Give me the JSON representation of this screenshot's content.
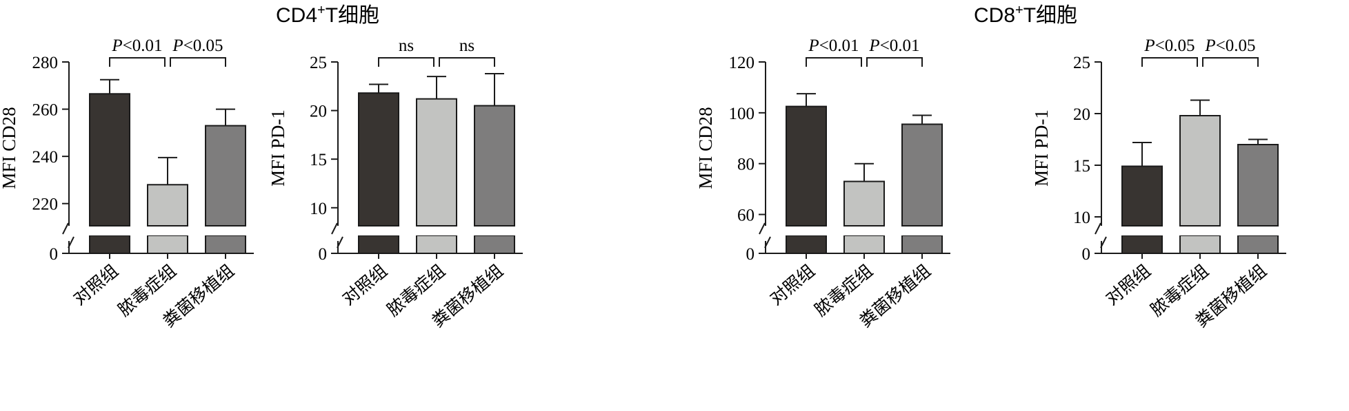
{
  "group_titles": [
    {
      "base": "CD4",
      "sup": "+",
      "rest": "T细胞"
    },
    {
      "base": "CD8",
      "sup": "+",
      "rest": "T细胞"
    }
  ],
  "chart_data": [
    {
      "type": "bar",
      "categories": [
        "对照组",
        "脓毒症组",
        "粪菌移植组"
      ],
      "ylabel": "MFI CD28",
      "ylim": [
        210,
        280
      ],
      "yticks": [
        "220",
        "240",
        "260",
        "280"
      ],
      "yzero": "0",
      "values": [
        266.5,
        228,
        253
      ],
      "errors": [
        6,
        11.5,
        7
      ],
      "colors": [
        "#383431",
        "#c2c3c1",
        "#7e7d7d"
      ],
      "comparisons": [
        {
          "from": 0,
          "to": 1,
          "italic": "P",
          "text": "<0.01"
        },
        {
          "from": 1,
          "to": 2,
          "italic": "P",
          "text": "<0.05"
        }
      ]
    },
    {
      "type": "bar",
      "categories": [
        "对照组",
        "脓毒症组",
        "粪菌移植组"
      ],
      "ylabel": "MFI PD-1",
      "ylim": [
        8,
        25
      ],
      "yticks": [
        "10",
        "15",
        "20",
        "25"
      ],
      "yzero": "0",
      "values": [
        21.8,
        21.2,
        20.5
      ],
      "errors": [
        0.9,
        2.3,
        3.3
      ],
      "colors": [
        "#383431",
        "#c2c3c1",
        "#7e7d7d"
      ],
      "comparisons": [
        {
          "from": 0,
          "to": 1,
          "italic": "",
          "text": "ns"
        },
        {
          "from": 1,
          "to": 2,
          "italic": "",
          "text": "ns"
        }
      ]
    },
    {
      "type": "bar",
      "categories": [
        "对照组",
        "脓毒症组",
        "粪菌移植组"
      ],
      "ylabel": "MFI CD28",
      "ylim": [
        55,
        120
      ],
      "yticks": [
        "60",
        "80",
        "100",
        "120"
      ],
      "yzero": "0",
      "values": [
        102.5,
        73,
        95.5
      ],
      "errors": [
        5,
        7,
        3.5
      ],
      "colors": [
        "#383431",
        "#c2c3c1",
        "#7e7d7d"
      ],
      "comparisons": [
        {
          "from": 0,
          "to": 1,
          "italic": "P",
          "text": "<0.01"
        },
        {
          "from": 1,
          "to": 2,
          "italic": "P",
          "text": "<0.01"
        }
      ]
    },
    {
      "type": "bar",
      "categories": [
        "对照组",
        "脓毒症组",
        "粪菌移植组"
      ],
      "ylabel": "MFI PD-1",
      "ylim": [
        9,
        25
      ],
      "yticks": [
        "10",
        "15",
        "20",
        "25"
      ],
      "yzero": "0",
      "values": [
        14.9,
        19.8,
        17
      ],
      "errors": [
        2.3,
        1.5,
        0.5
      ],
      "colors": [
        "#383431",
        "#c2c3c1",
        "#7e7d7d"
      ],
      "comparisons": [
        {
          "from": 0,
          "to": 1,
          "italic": "P",
          "text": "<0.05"
        },
        {
          "from": 1,
          "to": 2,
          "italic": "P",
          "text": "<0.05"
        }
      ]
    }
  ]
}
